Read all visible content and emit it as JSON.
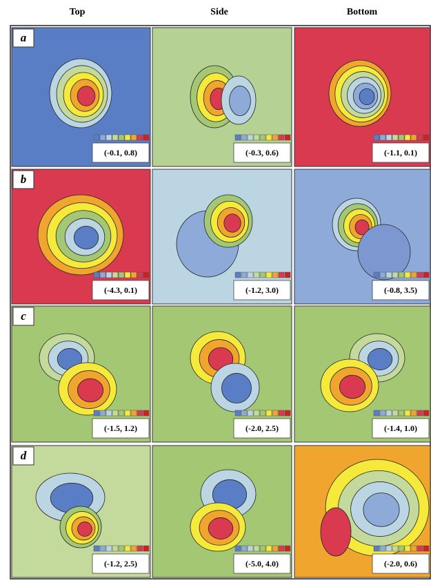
{
  "columns": [
    "Top",
    "Side",
    "Bottom"
  ],
  "rows": [
    {
      "label": "a",
      "panels": [
        "(-0.1, 0.8)",
        "(-0.3, 0.6)",
        "(-1.1, 0.1)"
      ]
    },
    {
      "label": "b",
      "panels": [
        "(-4.3, 0.1)",
        "(-1.2, 3.0)",
        "(-0.8, 3.5)"
      ]
    },
    {
      "label": "c",
      "panels": [
        "(-1.5, 1.2)",
        "(-2.0, 2.5)",
        "(-1.4, 1.0)"
      ]
    },
    {
      "label": "d",
      "panels": [
        "(-1.2, 2.5)",
        "(-5.0, 4.0)",
        "(-2.0, 0.6)"
      ]
    }
  ]
}
